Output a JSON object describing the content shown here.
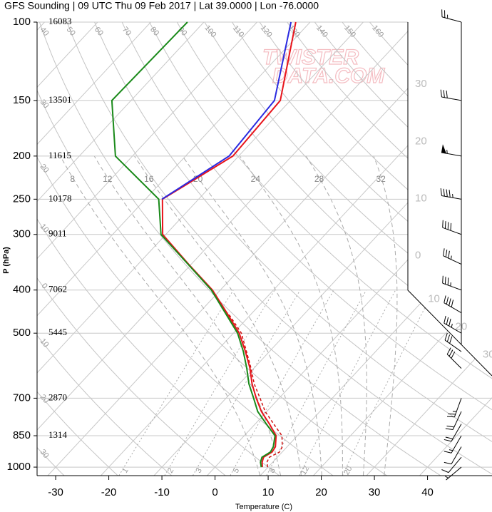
{
  "chart_data": {
    "type": "skewt",
    "title": "GFS Sounding | 09 UTC Thu 09 Feb 2017 | Lat 39.0000 | Lon -76.0000",
    "xlabel": "Temperature (C)",
    "ylabel": "P (hPa)",
    "watermark": [
      "TWISTER",
      "DATA.COM"
    ],
    "xlim": [
      -33.5,
      46.5
    ],
    "xticks": [
      -30,
      -20,
      -10,
      0,
      10,
      20,
      30,
      40
    ],
    "ylim": [
      1045,
      100
    ],
    "log_y": true,
    "yticks": [
      100,
      150,
      200,
      250,
      300,
      400,
      500,
      700,
      850,
      1000
    ],
    "heights": [
      16083,
      13501,
      11615,
      10178,
      9011,
      7062,
      5445,
      2870,
      1314,
      null
    ],
    "pressure": [
      1000,
      975,
      950,
      925,
      900,
      850,
      800,
      750,
      700,
      650,
      600,
      550,
      500,
      450,
      400,
      350,
      300,
      250,
      200,
      150,
      100
    ],
    "series": [
      {
        "color": "#e8141b",
        "values": [
          8.9,
          8.0,
          7.4,
          8.1,
          7.8,
          6.0,
          2.7,
          -1.0,
          -4.3,
          -7.6,
          -10.7,
          -14.5,
          -18.9,
          -24.8,
          -31.5,
          -40.5,
          -50.6,
          -56.8,
          -51.1,
          -51.9,
          -62.7
        ]
      },
      {
        "color": "#d01010",
        "dashed": true,
        "values": [
          9.9,
          8.9,
          8.5,
          9.5,
          9.1,
          7.1,
          3.5,
          -0.3,
          -3.6,
          -7.2,
          -10.5,
          -14.3,
          -18.5,
          -24.6,
          null,
          null,
          null,
          null,
          null,
          null,
          null
        ]
      },
      {
        "color": "#2a2ae0",
        "values": [
          null,
          null,
          null,
          null,
          null,
          null,
          null,
          null,
          null,
          null,
          null,
          null,
          null,
          null,
          null,
          null,
          null,
          -56.9,
          -51.8,
          -53.0,
          -63.6
        ]
      },
      {
        "color": "#1a8a1a",
        "values": [
          8.7,
          7.7,
          7.1,
          7.8,
          7.4,
          5.8,
          2.1,
          -1.7,
          -4.8,
          -8.2,
          -11.3,
          -14.9,
          -19.2,
          -25.1,
          -31.7,
          -40.6,
          -50.9,
          -57.5,
          -73.2,
          -83.6,
          -83.1
        ]
      }
    ],
    "isotherm_labels": [
      {
        "value": -30,
        "label": "30"
      },
      {
        "value": -20,
        "label": "20"
      },
      {
        "value": -10,
        "label": "10"
      },
      0,
      10,
      20,
      30
    ],
    "dry_adiabats": [
      {
        "value": -30,
        "label": "30"
      },
      {
        "value": -20,
        "label": "20"
      },
      {
        "value": -10,
        "label": "10"
      },
      0,
      10,
      20,
      30,
      40,
      50,
      60,
      70,
      80,
      90,
      100,
      110,
      120,
      130,
      140,
      150,
      160
    ],
    "moist_adiabats": [
      8,
      12,
      16,
      20,
      24,
      28,
      32
    ],
    "mixing_ratios": [
      1,
      2,
      3,
      5,
      8,
      12,
      20
    ],
    "wind": {
      "pressure": [
        100,
        150,
        200,
        250,
        300,
        350,
        400,
        450,
        500,
        550,
        600,
        700,
        750,
        800,
        850,
        900,
        950,
        1000
      ],
      "direction": [
        285,
        280,
        280,
        280,
        290,
        295,
        290,
        300,
        300,
        305,
        315,
        200,
        205,
        210,
        210,
        210,
        220,
        230
      ],
      "speed": [
        25,
        30,
        55,
        45,
        40,
        35,
        35,
        40,
        35,
        30,
        30,
        25,
        20,
        20,
        15,
        10,
        10,
        5
      ]
    }
  }
}
